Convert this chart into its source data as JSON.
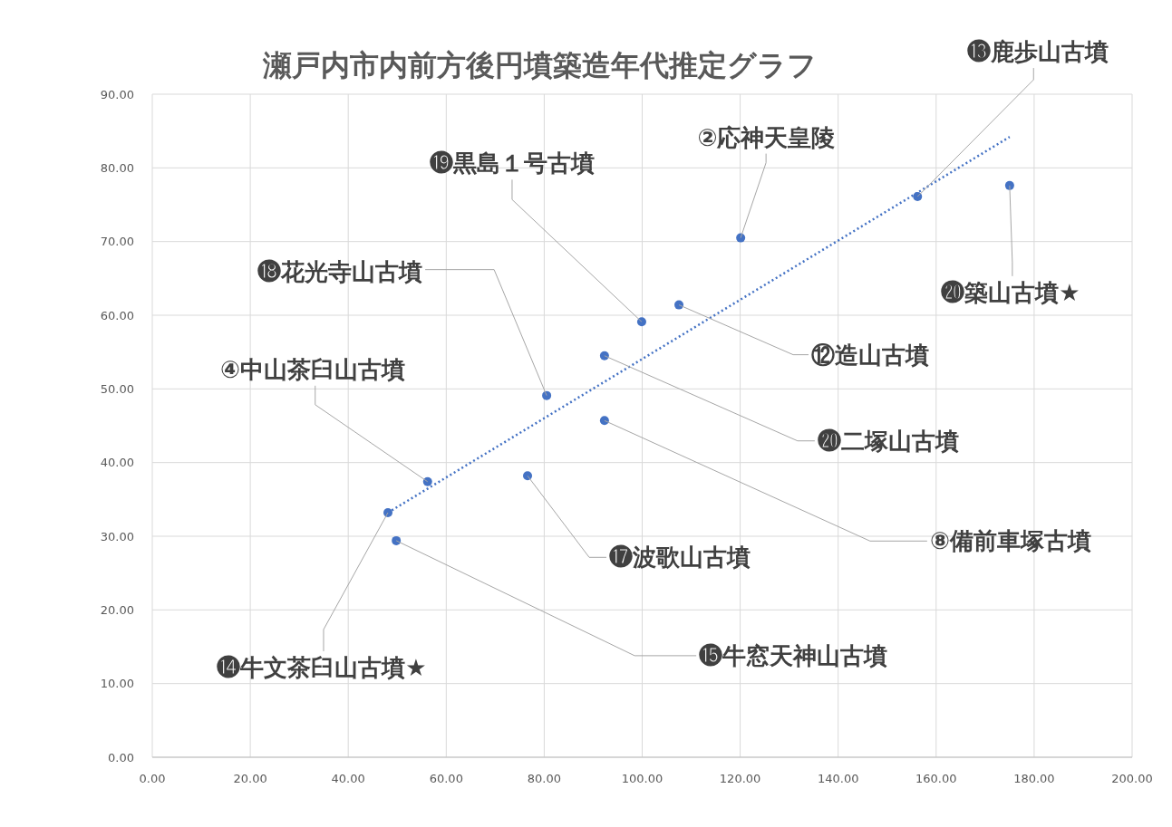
{
  "chart_data": {
    "type": "scatter",
    "title": "瀬戸内市内前方後円墳築造年代推定グラフ",
    "xlim": [
      0,
      200
    ],
    "ylim": [
      0,
      90
    ],
    "xticks": [
      {
        "value": 0,
        "label": "0.00"
      },
      {
        "value": 20,
        "label": "20.00"
      },
      {
        "value": 40,
        "label": "40.00"
      },
      {
        "value": 60,
        "label": "60.00"
      },
      {
        "value": 80,
        "label": "80.00"
      },
      {
        "value": 100,
        "label": "100.00"
      },
      {
        "value": 120,
        "label": "120.00"
      },
      {
        "value": 140,
        "label": "140.00"
      },
      {
        "value": 160,
        "label": "160.00"
      },
      {
        "value": 180,
        "label": "180.00"
      },
      {
        "value": 200,
        "label": "200.00"
      }
    ],
    "yticks": [
      {
        "value": 0,
        "label": "0.00"
      },
      {
        "value": 10,
        "label": "10.00"
      },
      {
        "value": 20,
        "label": "20.00"
      },
      {
        "value": 30,
        "label": "30.00"
      },
      {
        "value": 40,
        "label": "40.00"
      },
      {
        "value": 50,
        "label": "50.00"
      },
      {
        "value": 60,
        "label": "60.00"
      },
      {
        "value": 70,
        "label": "70.00"
      },
      {
        "value": 80,
        "label": "80.00"
      },
      {
        "value": 90,
        "label": "90.00"
      }
    ],
    "grid": true,
    "series": [
      {
        "color": "#4472c4",
        "marker": "circle",
        "x": [
          48.1,
          49.8,
          56.2,
          76.6,
          80.5,
          92.3,
          92.3,
          99.9,
          107.5,
          120.1,
          156.2,
          175.0
        ],
        "values": [
          33.2,
          29.4,
          37.4,
          38.2,
          49.1,
          54.5,
          45.7,
          59.1,
          61.4,
          70.5,
          76.1,
          77.6
        ]
      },
      {
        "type": "line",
        "color": "#4472c4",
        "line_style": "dotted",
        "x": [
          48.1,
          175.0
        ],
        "values": [
          33.2,
          84.2
        ]
      }
    ],
    "annotations": [
      {
        "text": "⓮牛文茶臼山古墳★",
        "x": 48.1,
        "y": 33.2
      },
      {
        "text": "⓯牛窓天神山古墳",
        "x": 49.8,
        "y": 29.4
      },
      {
        "text": "④中山茶臼山古墳",
        "x": 56.2,
        "y": 37.4
      },
      {
        "text": "⓱波歌山古墳",
        "x": 76.6,
        "y": 38.2
      },
      {
        "text": "⓲花光寺山古墳",
        "x": 80.5,
        "y": 49.1
      },
      {
        "text": "⓴二塚山古墳",
        "x": 92.3,
        "y": 54.5
      },
      {
        "text": "⑧備前車塚古墳",
        "x": 92.3,
        "y": 45.7
      },
      {
        "text": "⓳黒島１号古墳",
        "x": 99.9,
        "y": 59.1
      },
      {
        "text": "⑫造山古墳",
        "x": 107.5,
        "y": 61.4
      },
      {
        "text": "②応神天皇陵",
        "x": 120.1,
        "y": 70.5
      },
      {
        "text": "⓭鹿歩山古墳",
        "x": 156.2,
        "y": 76.1
      },
      {
        "text": "⓴築山古墳★",
        "x": 175.0,
        "y": 77.6
      }
    ]
  }
}
